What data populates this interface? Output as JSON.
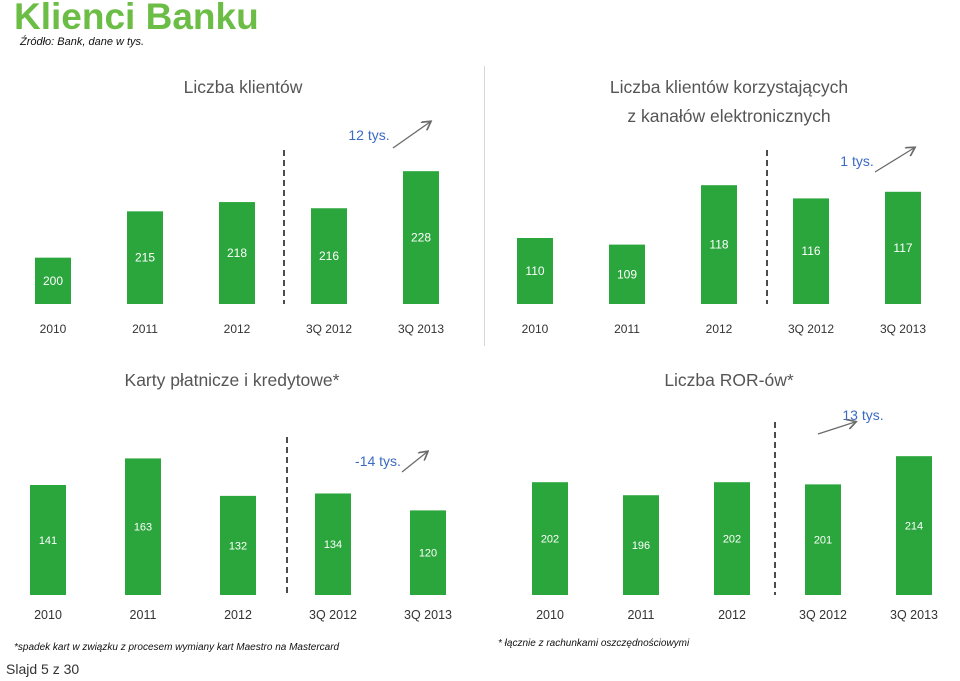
{
  "page": {
    "title": "Klienci Banku",
    "source": "Źródło: Bank, dane w tys.",
    "slide": "Slajd 5 z 30",
    "footnote_left": "*spadek kart w związku z procesem wymiany kart Maestro na Mastercard",
    "footnote_right": "* łącznie z rachunkami oszczędnościowymi"
  },
  "colors": {
    "bar": "#2aa63c",
    "title": "#6cbd45",
    "chart_title": "#555555",
    "change_label": "#3a6bc4",
    "arrow": "#6b6b6b",
    "separator": "#111111"
  },
  "chart_data": [
    {
      "type": "bar",
      "title": "Liczba klientów",
      "categories": [
        "2010",
        "2011",
        "2012",
        "3Q 2012",
        "3Q 2013"
      ],
      "values": [
        200,
        215,
        218,
        216,
        228
      ],
      "change_label": "12 tys.",
      "change_direction": "up"
    },
    {
      "type": "bar",
      "title": "Liczba klientów korzystających\nz kanałów elektronicznych",
      "categories": [
        "2010",
        "2011",
        "2012",
        "3Q 2012",
        "3Q 2013"
      ],
      "values": [
        110,
        109,
        118,
        116,
        117
      ],
      "change_label": "1 tys.",
      "change_direction": "up"
    },
    {
      "type": "bar",
      "title": "Karty płatnicze i kredytowe*",
      "categories": [
        "2010",
        "2011",
        "2012",
        "3Q 2012",
        "3Q 2013"
      ],
      "values": [
        141,
        163,
        132,
        134,
        120
      ],
      "change_label": "-14 tys.",
      "change_direction": "down"
    },
    {
      "type": "bar",
      "title": "Liczba ROR-ów*",
      "categories": [
        "2010",
        "2011",
        "2012",
        "3Q 2012",
        "3Q 2013"
      ],
      "values": [
        202,
        196,
        202,
        201,
        214
      ],
      "change_label": "13 tys.",
      "change_direction": "up"
    }
  ]
}
